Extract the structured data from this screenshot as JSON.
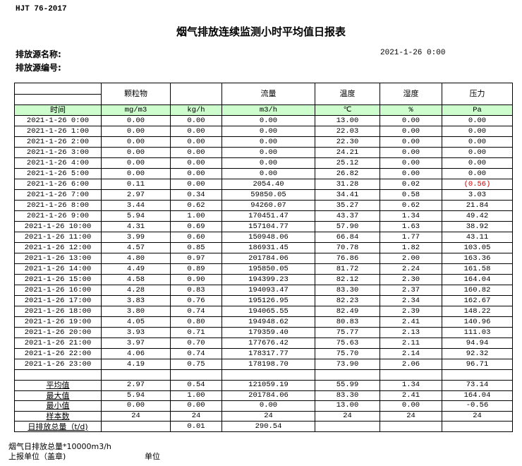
{
  "report": {
    "standard": "HJT  76-2017",
    "title": "烟气排放连续监测小时平均值日报表",
    "source_name_label": "排放源名称:",
    "source_id_label": "排放源编号:",
    "date": "2021-1-26 0:00"
  },
  "table": {
    "headers": [
      "",
      "颗粒物",
      "",
      "流量",
      "温度",
      "湿度",
      "压力"
    ],
    "units": [
      "时间",
      "mg/m3",
      "kg/h",
      "m3/h",
      "℃",
      "%",
      "Pa"
    ],
    "rows": [
      [
        "2021-1-26 0:00",
        "0.00",
        "0.00",
        "0.00",
        "13.00",
        "0.00",
        "0.00"
      ],
      [
        "2021-1-26 1:00",
        "0.00",
        "0.00",
        "0.00",
        "22.03",
        "0.00",
        "0.00"
      ],
      [
        "2021-1-26 2:00",
        "0.00",
        "0.00",
        "0.00",
        "22.30",
        "0.00",
        "0.00"
      ],
      [
        "2021-1-26 3:00",
        "0.00",
        "0.00",
        "0.00",
        "24.21",
        "0.00",
        "0.00"
      ],
      [
        "2021-1-26 4:00",
        "0.00",
        "0.00",
        "0.00",
        "25.12",
        "0.00",
        "0.00"
      ],
      [
        "2021-1-26 5:00",
        "0.00",
        "0.00",
        "0.00",
        "26.82",
        "0.00",
        "0.00"
      ],
      [
        "2021-1-26 6:00",
        "0.11",
        "0.00",
        "2054.40",
        "31.28",
        "0.02",
        "(0.56)"
      ],
      [
        "2021-1-26 7:00",
        "2.97",
        "0.34",
        "59850.05",
        "34.41",
        "0.58",
        "3.03"
      ],
      [
        "2021-1-26 8:00",
        "3.44",
        "0.62",
        "94260.07",
        "35.27",
        "0.62",
        "21.84"
      ],
      [
        "2021-1-26 9:00",
        "5.94",
        "1.00",
        "170451.47",
        "43.37",
        "1.34",
        "49.42"
      ],
      [
        "2021-1-26 10:00",
        "4.31",
        "0.69",
        "157104.77",
        "57.90",
        "1.63",
        "38.92"
      ],
      [
        "2021-1-26 11:00",
        "3.99",
        "0.60",
        "150948.06",
        "66.84",
        "1.77",
        "43.11"
      ],
      [
        "2021-1-26 12:00",
        "4.57",
        "0.85",
        "186931.45",
        "70.78",
        "1.82",
        "103.05"
      ],
      [
        "2021-1-26 13:00",
        "4.80",
        "0.97",
        "201784.06",
        "76.86",
        "2.00",
        "163.36"
      ],
      [
        "2021-1-26 14:00",
        "4.49",
        "0.89",
        "195850.05",
        "81.72",
        "2.24",
        "161.58"
      ],
      [
        "2021-1-26 15:00",
        "4.58",
        "0.90",
        "194399.23",
        "82.12",
        "2.30",
        "164.04"
      ],
      [
        "2021-1-26 16:00",
        "4.28",
        "0.83",
        "194093.47",
        "83.30",
        "2.37",
        "160.82"
      ],
      [
        "2021-1-26 17:00",
        "3.83",
        "0.76",
        "195126.95",
        "82.23",
        "2.34",
        "162.67"
      ],
      [
        "2021-1-26 18:00",
        "3.80",
        "0.74",
        "194065.55",
        "82.49",
        "2.39",
        "148.22"
      ],
      [
        "2021-1-26 19:00",
        "4.05",
        "0.80",
        "194948.62",
        "80.83",
        "2.41",
        "140.96"
      ],
      [
        "2021-1-26 20:00",
        "3.93",
        "0.71",
        "179359.40",
        "75.77",
        "2.13",
        "111.03"
      ],
      [
        "2021-1-26 21:00",
        "3.97",
        "0.70",
        "177676.42",
        "75.63",
        "2.11",
        "94.94"
      ],
      [
        "2021-1-26 22:00",
        "4.06",
        "0.74",
        "178317.77",
        "75.70",
        "2.14",
        "92.32"
      ],
      [
        "2021-1-26 23:00",
        "4.19",
        "0.75",
        "178198.70",
        "73.90",
        "2.06",
        "96.71"
      ]
    ],
    "negative_color": "#d00000",
    "stats": [
      [
        "平均值",
        "2.97",
        "0.54",
        "121059.19",
        "55.99",
        "1.34",
        "73.14"
      ],
      [
        "最大值",
        "5.94",
        "1.00",
        "201784.06",
        "83.30",
        "2.41",
        "164.04"
      ],
      [
        "最小值",
        "0.00",
        "0.00",
        "0.00",
        "13.00",
        "0.00",
        "-0.56"
      ],
      [
        "样本数",
        "24",
        "24",
        "24",
        "24",
        "24",
        "24"
      ],
      [
        "日排放总量（t/d)",
        "",
        "0.01",
        "290.54",
        "",
        "",
        ""
      ]
    ]
  },
  "footer": {
    "note": "烟气日排放总量*10000m3/h",
    "reporter_label": "上报单位（盖章)",
    "unit_label": "单位"
  }
}
